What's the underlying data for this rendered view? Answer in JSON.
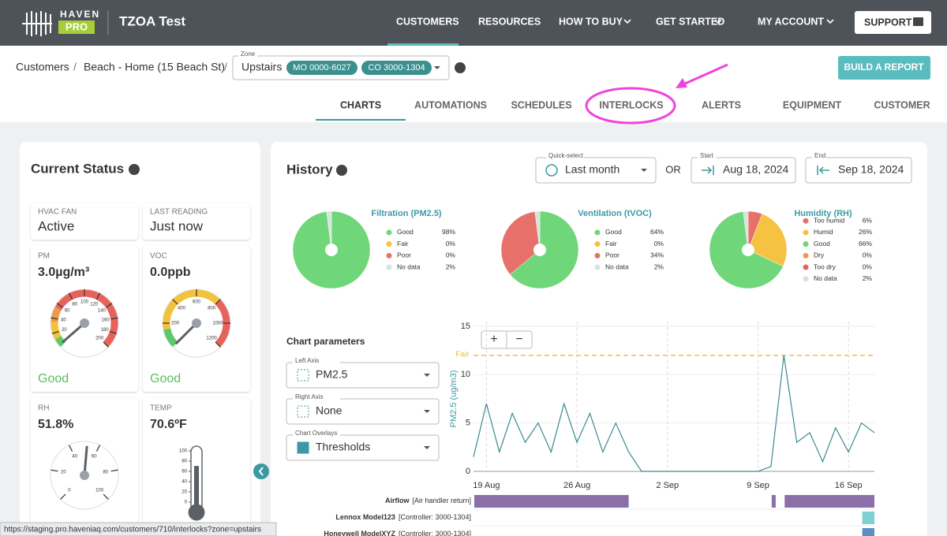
{
  "header": {
    "brand": "HAVEN",
    "brand_sub": "PRO",
    "app": "TZOA Test",
    "nav": [
      "CUSTOMERS",
      "RESOURCES",
      "HOW TO BUY",
      "GET STARTED",
      "MY ACCOUNT"
    ],
    "active": "CUSTOMERS",
    "support": "SUPPORT"
  },
  "breadcrumb": {
    "items": [
      "Customers",
      "Beach - Home (15 Beach St)"
    ],
    "separator": "/"
  },
  "zone": {
    "label": "Zone",
    "value": "Upstairs",
    "chips": [
      "MO 0000-6027",
      "CO 3000-1304"
    ]
  },
  "build_report": "BUILD A REPORT",
  "tabs": {
    "items": [
      "CHARTS",
      "AUTOMATIONS",
      "SCHEDULES",
      "INTERLOCKS",
      "ALERTS",
      "EQUIPMENT",
      "CUSTOMER"
    ],
    "active": "CHARTS"
  },
  "status": {
    "title": "Current Status",
    "cards": [
      {
        "label": "HVAC FAN",
        "value": "Active"
      },
      {
        "label": "LAST READING",
        "value": "Just now"
      }
    ],
    "gauges": [
      {
        "type": "gauge",
        "label": "PM",
        "value": 3.0,
        "value_label": "3.0µg/m³",
        "status": "Good",
        "lim": [
          0,
          200
        ],
        "ticks": [
          20,
          40,
          60,
          80,
          100,
          120,
          140,
          160,
          180,
          200
        ],
        "bands": [
          {
            "from": 0,
            "to": 12,
            "color": "#5cc96b"
          },
          {
            "from": 12,
            "to": 35,
            "color": "#f2c23c"
          },
          {
            "from": 35,
            "to": 55,
            "color": "#ef9a4a"
          },
          {
            "from": 55,
            "to": 200,
            "color": "#e8625c"
          }
        ]
      },
      {
        "type": "gauge",
        "label": "VOC",
        "value": 0.0,
        "value_label": "0.0ppb",
        "status": "Good",
        "lim": [
          0,
          1200
        ],
        "ticks": [
          200,
          400,
          600,
          800,
          1000,
          1200
        ],
        "bands": [
          {
            "from": 0,
            "to": 150,
            "color": "#5cc96b"
          },
          {
            "from": 150,
            "to": 800,
            "color": "#f2c23c"
          },
          {
            "from": 800,
            "to": 1200,
            "color": "#e8625c"
          }
        ]
      },
      {
        "type": "gauge",
        "label": "RH",
        "value": 51.8,
        "value_label": "51.8%",
        "lim": [
          0,
          100
        ],
        "ticks": [
          0,
          20,
          40,
          60,
          80,
          100
        ],
        "bands": []
      },
      {
        "type": "thermometer",
        "label": "TEMP",
        "value": 70.6,
        "value_label": "70.6ºF",
        "lim": [
          0,
          100
        ],
        "ticks": [
          100,
          80,
          60,
          40,
          20,
          0
        ]
      }
    ]
  },
  "history": {
    "title": "History",
    "quick_label": "Quick-select",
    "quick": "Last month",
    "or": "OR",
    "start_label": "Start",
    "start": "Aug 18, 2024",
    "end_label": "End",
    "end": "Sep 18, 2024"
  },
  "chart_parameters": {
    "title": "Chart parameters",
    "fields": [
      {
        "label": "Left Axis",
        "value": "PM2.5"
      },
      {
        "label": "Right Axis",
        "value": "None"
      },
      {
        "label": "Chart Overlays",
        "value": "Thresholds"
      }
    ]
  },
  "chart_controls": [
    "+",
    "−"
  ],
  "chart_data": [
    {
      "type": "pie",
      "title": "Filtration (PM2.5)",
      "categories": [
        "Good",
        "Fair",
        "Poor",
        "No data"
      ],
      "values": [
        98,
        0,
        0,
        2
      ],
      "value_labels": [
        "98%",
        "0%",
        "0%",
        "2%"
      ],
      "colors": [
        "#6fd67a",
        "#f5c242",
        "#e8706a",
        "#d5e3dd"
      ]
    },
    {
      "type": "pie",
      "title": "Ventilation (tVOC)",
      "categories": [
        "Good",
        "Fair",
        "Poor",
        "No data"
      ],
      "values": [
        64,
        0,
        34,
        2
      ],
      "value_labels": [
        "64%",
        "0%",
        "34%",
        "2%"
      ],
      "colors": [
        "#6fd67a",
        "#f5c242",
        "#e8706a",
        "#d5e3dd"
      ]
    },
    {
      "type": "pie",
      "title": "Humidity (RH)",
      "categories": [
        "Too humid",
        "Humid",
        "Good",
        "Dry",
        "Too dry",
        "No data"
      ],
      "values": [
        6,
        26,
        66,
        0,
        0,
        2
      ],
      "value_labels": [
        "6%",
        "26%",
        "66%",
        "0%",
        "0%",
        "2%"
      ],
      "colors": [
        "#e8706a",
        "#f5c242",
        "#6fd67a",
        "#ef9a4a",
        "#e8625c",
        "#d5e3dd"
      ]
    },
    {
      "type": "line",
      "ylabel": "PM2.5 (ug/m3)",
      "color": "#3a8a8f",
      "x": [
        "18 Aug",
        "19 Aug",
        "20 Aug",
        "21 Aug",
        "22 Aug",
        "23 Aug",
        "24 Aug",
        "25 Aug",
        "26 Aug",
        "27 Aug",
        "28 Aug",
        "29 Aug",
        "30 Aug",
        "31 Aug",
        "1 Sep",
        "2 Sep",
        "3 Sep",
        "4 Sep",
        "5 Sep",
        "6 Sep",
        "7 Sep",
        "8 Sep",
        "9 Sep",
        "10 Sep",
        "11 Sep",
        "12 Sep",
        "13 Sep",
        "14 Sep",
        "15 Sep",
        "16 Sep",
        "17 Sep",
        "18 Sep"
      ],
      "values": [
        1.5,
        7,
        2,
        6,
        3,
        5,
        2,
        7,
        3,
        6,
        2,
        5,
        2,
        0,
        0,
        0,
        0,
        0,
        0,
        0,
        0,
        0,
        0,
        0.5,
        12,
        3,
        4,
        1,
        4.5,
        2,
        5,
        4
      ],
      "ylim": [
        0,
        15
      ],
      "yticks": [
        0,
        5,
        10,
        15
      ],
      "xticks": [
        "19 Aug",
        "26 Aug",
        "2 Sep",
        "9 Sep",
        "16 Sep"
      ],
      "grid": true,
      "threshold": {
        "label": "Fair",
        "value": 12,
        "color": "#f0c040"
      },
      "timeline": [
        {
          "name": "Airflow",
          "detail": "[Air handler return]",
          "color": "#8a6fa8",
          "segments": [
            {
              "start": "18 Aug",
              "end": "30 Aug"
            },
            {
              "start": "10 Sep",
              "end": "10 Sep"
            },
            {
              "start": "11 Sep",
              "end": "18 Sep"
            }
          ]
        },
        {
          "name": "Lennox Model123",
          "detail": "[Controller: 3000-1304]",
          "color": "#7fd1d1",
          "segments": [
            {
              "start": "17 Sep",
              "end": "18 Sep"
            }
          ]
        },
        {
          "name": "Honeywell ModelXYZ",
          "detail": "[Controller: 3000-1304]",
          "color": "#5b8fc4",
          "segments": [
            {
              "start": "17 Sep",
              "end": "18 Sep"
            }
          ]
        }
      ]
    }
  ],
  "status_url": "https://staging.pro.haveniaq.com/customers/710/interlocks?zone=upstairs"
}
